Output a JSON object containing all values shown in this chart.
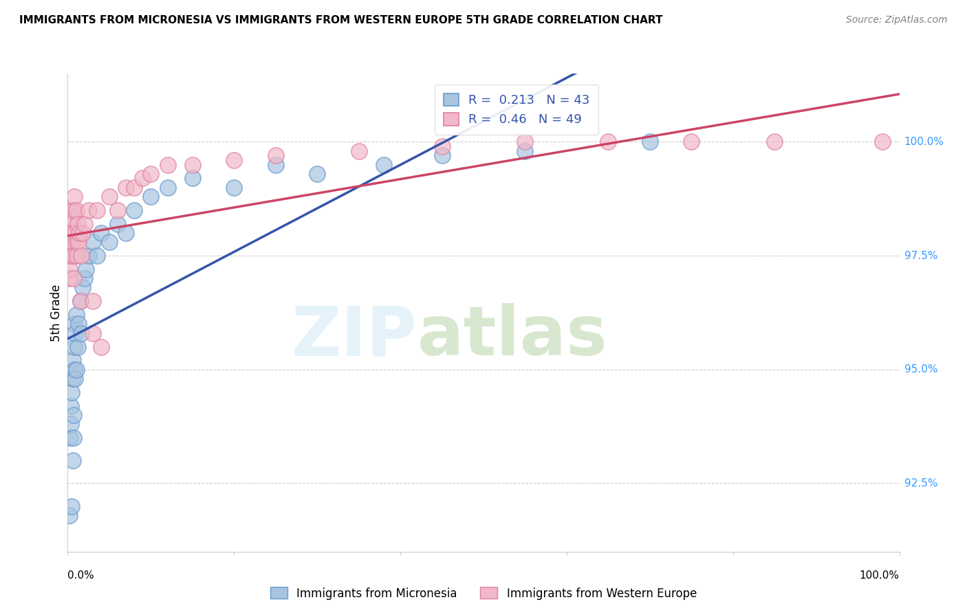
{
  "title": "IMMIGRANTS FROM MICRONESIA VS IMMIGRANTS FROM WESTERN EUROPE 5TH GRADE CORRELATION CHART",
  "source": "Source: ZipAtlas.com",
  "ylabel": "5th Grade",
  "y_ticks": [
    92.5,
    95.0,
    97.5,
    100.0
  ],
  "y_tick_labels": [
    "92.5%",
    "95.0%",
    "97.5%",
    "100.0%"
  ],
  "xlim": [
    0.0,
    1.0
  ],
  "ylim": [
    91.0,
    101.5
  ],
  "series1_name": "Immigrants from Micronesia",
  "series1_color": "#a8c4e0",
  "series1_edge": "#6699cc",
  "series1_R": 0.213,
  "series1_N": 43,
  "series2_name": "Immigrants from Western Europe",
  "series2_color": "#f0b8c8",
  "series2_edge": "#e080a0",
  "series2_R": 0.46,
  "series2_N": 49,
  "background": "#ffffff",
  "grid_color": "#cccccc",
  "series1_x": [
    0.002,
    0.003,
    0.004,
    0.004,
    0.005,
    0.005,
    0.006,
    0.006,
    0.006,
    0.007,
    0.007,
    0.008,
    0.008,
    0.008,
    0.009,
    0.009,
    0.01,
    0.01,
    0.012,
    0.013,
    0.015,
    0.016,
    0.018,
    0.02,
    0.022,
    0.025,
    0.03,
    0.035,
    0.04,
    0.05,
    0.06,
    0.07,
    0.08,
    0.1,
    0.12,
    0.15,
    0.2,
    0.25,
    0.3,
    0.38,
    0.45,
    0.55,
    0.7
  ],
  "series1_y": [
    91.8,
    93.5,
    93.8,
    94.2,
    92.0,
    94.5,
    93.0,
    94.8,
    95.2,
    93.5,
    94.0,
    95.0,
    95.5,
    96.0,
    94.8,
    95.8,
    95.0,
    96.2,
    95.5,
    96.0,
    96.5,
    95.8,
    96.8,
    97.0,
    97.2,
    97.5,
    97.8,
    97.5,
    98.0,
    97.8,
    98.2,
    98.0,
    98.5,
    98.8,
    99.0,
    99.2,
    99.0,
    99.5,
    99.3,
    99.5,
    99.7,
    99.8,
    100.0
  ],
  "series2_x": [
    0.001,
    0.002,
    0.002,
    0.003,
    0.003,
    0.004,
    0.004,
    0.005,
    0.005,
    0.005,
    0.006,
    0.006,
    0.007,
    0.007,
    0.008,
    0.008,
    0.009,
    0.01,
    0.01,
    0.011,
    0.012,
    0.013,
    0.014,
    0.015,
    0.016,
    0.018,
    0.02,
    0.025,
    0.03,
    0.03,
    0.035,
    0.04,
    0.05,
    0.06,
    0.07,
    0.08,
    0.09,
    0.1,
    0.12,
    0.15,
    0.2,
    0.25,
    0.35,
    0.45,
    0.55,
    0.65,
    0.75,
    0.85,
    0.98
  ],
  "series2_y": [
    97.0,
    97.2,
    97.8,
    97.5,
    98.0,
    97.8,
    98.2,
    97.5,
    98.0,
    98.5,
    97.8,
    98.3,
    97.0,
    98.5,
    97.5,
    98.8,
    98.0,
    97.8,
    98.5,
    97.5,
    98.2,
    97.8,
    98.0,
    96.5,
    97.5,
    98.0,
    98.2,
    98.5,
    95.8,
    96.5,
    98.5,
    95.5,
    98.8,
    98.5,
    99.0,
    99.0,
    99.2,
    99.3,
    99.5,
    99.5,
    99.6,
    99.7,
    99.8,
    99.9,
    100.0,
    100.0,
    100.0,
    100.0,
    100.0
  ]
}
